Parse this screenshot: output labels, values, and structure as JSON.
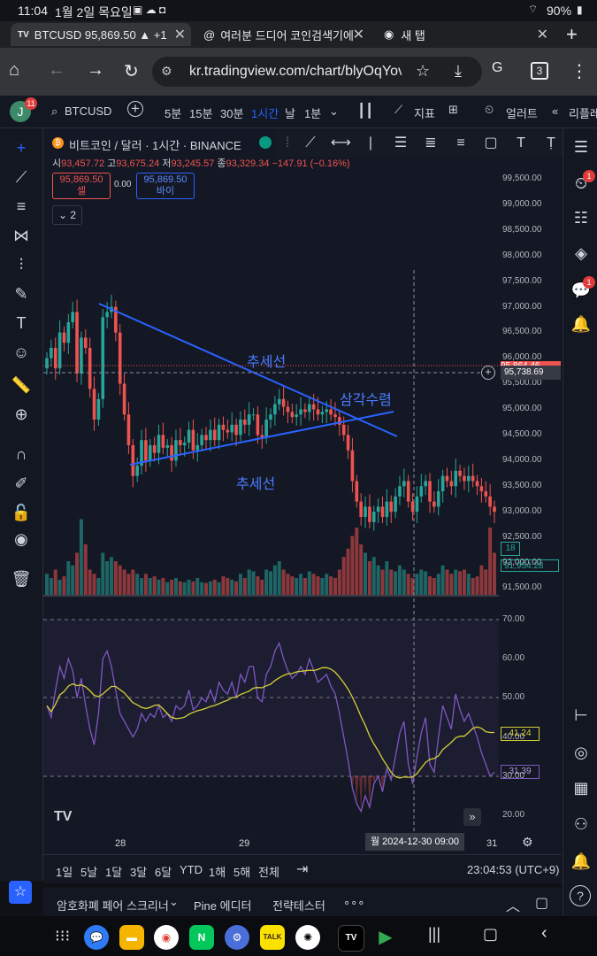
{
  "status": {
    "time": "11:04",
    "date": "1월 2일 목요일",
    "battery": "90%"
  },
  "tabs": [
    {
      "title": "BTCUSD 95,869.50 ▲ +1"
    },
    {
      "title": "여러분 드디어 코인검색기에"
    },
    {
      "title": "새 탭"
    }
  ],
  "address": {
    "url": "kr.tradingview.com/chart/blyOqYov",
    "tab_count": "3"
  },
  "tvtop": {
    "symbol": "BTCUSD",
    "avatar": "J",
    "avatar_badge": "11",
    "tf": [
      "5분",
      "15분",
      "30분",
      "1시간",
      "날",
      "1분"
    ],
    "active_tf": "1시간",
    "indicators": "지표",
    "alert": "얼러트",
    "replay": "리플레"
  },
  "legend": {
    "title": "비트코인 / 달러 · 1시간 · BINANCE",
    "o_label": "시",
    "o": "93,457.72",
    "h_label": "고",
    "h": "93,675.24",
    "l_label": "저",
    "l": "93,245.57",
    "c_label": "종",
    "c": "93,329.34",
    "chg": "−147.91 (−0.16%)",
    "sell_price": "95,869.50",
    "sell_label": "셀",
    "spread": "0.00",
    "buy_price": "95,869.50",
    "buy_label": "바이",
    "collapse": "2"
  },
  "annotations": {
    "trend_top": "추세선",
    "trend_bottom": "추세선",
    "triangle": "삼각수렴"
  },
  "price_axis": [
    "99,500.00",
    "99,000.00",
    "98,500.00",
    "98,000.00",
    "97,500.00",
    "97,000.00",
    "96,500.00",
    "96,000.00",
    "95,500.00",
    "95,000.00",
    "94,500.00",
    "94,000.00",
    "93,500.00",
    "93,000.00",
    "92,500.00",
    "92,000.00",
    "91,500.00"
  ],
  "price_tags": {
    "red": "95,864.46",
    "cursor": "95,738.69",
    "vol": "18",
    "green": "91,954.28"
  },
  "rsi_axis": [
    "70.00",
    "60.00",
    "50.00",
    "40.00",
    "30.00",
    "20.00"
  ],
  "rsi_tags": {
    "ma": "41.24",
    "rsi": "31.39"
  },
  "time_axis": {
    "t1": "28",
    "t2": "29",
    "t3": "31",
    "cursor_date": "월 2024-12-30  09:00"
  },
  "timeframes": {
    "items": [
      "1일",
      "5날",
      "1달",
      "3달",
      "6달",
      "YTD",
      "1해",
      "5해",
      "전체"
    ],
    "clock": "23:04:53 (UTC+9)"
  },
  "bottom": {
    "items": [
      "암호화폐 페어 스크리너",
      "Pine 에디터",
      "전략테스터",
      "∘∘∘"
    ]
  },
  "badges": {
    "alerts": "1",
    "chat": "1"
  },
  "colors": {
    "up": "#26a69a",
    "down": "#ef5350",
    "trend": "#2962ff",
    "rsi": "#7e57c2",
    "rsi_ma": "#d6d038"
  },
  "chart_data": {
    "type": "candlestick",
    "title": "비트코인 / 달러 · 1시간 · BINANCE",
    "ylim": [
      91300,
      99700
    ],
    "candles_close": [
      96000,
      96200,
      95800,
      96500,
      96300,
      96700,
      96900,
      95700,
      96400,
      96200,
      95400,
      94800,
      95200,
      96800,
      96900,
      97000,
      96500,
      95500,
      94900,
      94300,
      93700,
      93900,
      94400,
      94000,
      94300,
      94150,
      94500,
      94250,
      94300,
      94000,
      94400,
      94300,
      94350,
      94600,
      94200,
      94300,
      94500,
      94400,
      94600,
      94400,
      94700,
      94600,
      94550,
      94700,
      94500,
      94800,
      94700,
      94900,
      94900,
      94500,
      94450,
      94800,
      94900,
      95100,
      95200,
      95050,
      94950,
      94850,
      94900,
      95000,
      94950,
      95100,
      95000,
      94900,
      94950,
      95000,
      94900,
      94850,
      94700,
      94500,
      94200,
      93600,
      93200,
      92900,
      93100,
      92800,
      93000,
      93100,
      92900,
      93200,
      93000,
      93300,
      93500,
      93600,
      93200,
      93000,
      93300,
      93500,
      93600,
      93200,
      93100,
      93400,
      93700,
      93600,
      93500,
      93800,
      93700,
      93600,
      93700,
      93600,
      93500,
      93400,
      93300,
      93100,
      93000
    ],
    "rsi": [
      48,
      45,
      52,
      58,
      55,
      60,
      57,
      50,
      55,
      48,
      42,
      38,
      46,
      60,
      62,
      58,
      52,
      46,
      44,
      42,
      40,
      42,
      46,
      44,
      46,
      45,
      48,
      45,
      46,
      44,
      48,
      47,
      48,
      52,
      47,
      48,
      50,
      49,
      52,
      49,
      54,
      52,
      51,
      54,
      50,
      56,
      54,
      58,
      58,
      50,
      49,
      56,
      58,
      62,
      64,
      60,
      57,
      55,
      56,
      58,
      56,
      60,
      57,
      54,
      55,
      56,
      53,
      51,
      46,
      40,
      34,
      27,
      23,
      21,
      25,
      22,
      28,
      30,
      26,
      32,
      29,
      35,
      41,
      44,
      33,
      28,
      35,
      41,
      45,
      33,
      31,
      40,
      48,
      45,
      42,
      51,
      47,
      44,
      46,
      43,
      40,
      36,
      33,
      30,
      31
    ],
    "volume": [
      0.25,
      0.2,
      0.3,
      0.18,
      0.22,
      0.4,
      0.35,
      0.5,
      0.9,
      0.6,
      0.3,
      0.25,
      0.2,
      0.5,
      0.4,
      0.45,
      0.4,
      0.35,
      0.3,
      0.25,
      0.3,
      0.25,
      0.2,
      0.25,
      0.2,
      0.22,
      0.18,
      0.2,
      0.15,
      0.18,
      0.2,
      0.16,
      0.15,
      0.18,
      0.16,
      0.2,
      0.15,
      0.14,
      0.16,
      0.18,
      0.15,
      0.22,
      0.2,
      0.18,
      0.16,
      0.25,
      0.2,
      0.3,
      0.28,
      0.22,
      0.18,
      0.3,
      0.28,
      0.35,
      0.4,
      0.3,
      0.25,
      0.22,
      0.2,
      0.25,
      0.2,
      0.28,
      0.25,
      0.22,
      0.2,
      0.25,
      0.22,
      0.2,
      0.3,
      0.45,
      0.55,
      0.7,
      0.8,
      0.6,
      0.5,
      0.4,
      0.45,
      0.35,
      0.3,
      0.4,
      0.3,
      0.28,
      0.35,
      0.3,
      0.25,
      0.2,
      0.25,
      0.3,
      0.28,
      0.22,
      0.2,
      0.25,
      0.35,
      0.3,
      0.25,
      0.3,
      0.28,
      0.3,
      0.25,
      0.2,
      0.22,
      0.35,
      0.3,
      0.8,
      0.5
    ]
  }
}
